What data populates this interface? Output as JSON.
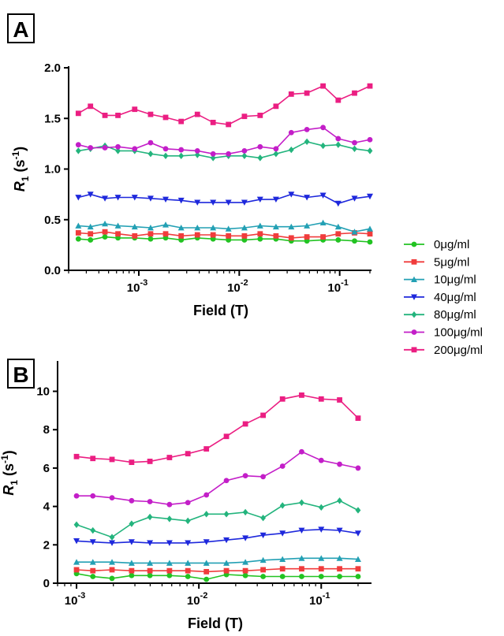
{
  "figure": {
    "panel_labels": [
      "A",
      "B"
    ],
    "legend": [
      {
        "label": "0μg/ml",
        "color": "#22c322",
        "marker": "circle"
      },
      {
        "label": "5μg/ml",
        "color": "#f03c3c",
        "marker": "square"
      },
      {
        "label": "10μg/ml",
        "color": "#23a0b4",
        "marker": "triangle-up"
      },
      {
        "label": "40μg/ml",
        "color": "#1e28dc",
        "marker": "triangle-down"
      },
      {
        "label": "80μg/ml",
        "color": "#23b47d",
        "marker": "diamond"
      },
      {
        "label": "100μg/ml",
        "color": "#c31ec8",
        "marker": "circle"
      },
      {
        "label": "200μg/ml",
        "color": "#eb1e82",
        "marker": "square"
      }
    ]
  },
  "chart_data": [
    {
      "type": "line",
      "panel": "A",
      "xlabel": "Field (T)",
      "ylabel": "R1 (s-1)",
      "xscale": "log",
      "xlim": [
        0.0002,
        0.2
      ],
      "ylim": [
        0,
        2.0
      ],
      "yticks": [
        "0.0",
        "0.5",
        "1.0",
        "1.5",
        "2.0"
      ],
      "xticks": [
        0.001,
        0.01,
        0.1
      ],
      "x": [
        0.00025,
        0.00033,
        0.00046,
        0.00062,
        0.00091,
        0.00131,
        0.00185,
        0.00264,
        0.00383,
        0.00549,
        0.00781,
        0.01126,
        0.01614,
        0.02321,
        0.03296,
        0.04717,
        0.06831,
        0.09669,
        0.14057,
        0.2
      ],
      "series": [
        {
          "name": "0μg/ml",
          "values": [
            0.31,
            0.3,
            0.33,
            0.32,
            0.32,
            0.31,
            0.32,
            0.3,
            0.32,
            0.31,
            0.3,
            0.3,
            0.31,
            0.31,
            0.29,
            0.29,
            0.3,
            0.3,
            0.29,
            0.28
          ]
        },
        {
          "name": "5μg/ml",
          "values": [
            0.37,
            0.36,
            0.38,
            0.36,
            0.34,
            0.36,
            0.36,
            0.34,
            0.35,
            0.35,
            0.34,
            0.34,
            0.36,
            0.34,
            0.32,
            0.33,
            0.33,
            0.36,
            0.37,
            0.36
          ]
        },
        {
          "name": "10μg/ml",
          "values": [
            0.44,
            0.43,
            0.46,
            0.44,
            0.43,
            0.42,
            0.45,
            0.42,
            0.42,
            0.42,
            0.41,
            0.42,
            0.44,
            0.43,
            0.43,
            0.44,
            0.47,
            0.43,
            0.38,
            0.41
          ]
        },
        {
          "name": "40μg/ml",
          "values": [
            0.72,
            0.75,
            0.71,
            0.72,
            0.72,
            0.71,
            0.7,
            0.69,
            0.67,
            0.67,
            0.67,
            0.67,
            0.7,
            0.7,
            0.75,
            0.72,
            0.74,
            0.66,
            0.71,
            0.73
          ]
        },
        {
          "name": "80μg/ml",
          "values": [
            1.18,
            1.2,
            1.23,
            1.18,
            1.18,
            1.15,
            1.13,
            1.13,
            1.14,
            1.11,
            1.13,
            1.13,
            1.11,
            1.15,
            1.19,
            1.27,
            1.23,
            1.24,
            1.2,
            1.18
          ]
        },
        {
          "name": "100μg/ml",
          "values": [
            1.24,
            1.21,
            1.21,
            1.22,
            1.2,
            1.26,
            1.2,
            1.19,
            1.18,
            1.15,
            1.15,
            1.18,
            1.22,
            1.2,
            1.36,
            1.39,
            1.41,
            1.3,
            1.26,
            1.29
          ]
        },
        {
          "name": "200μg/ml",
          "values": [
            1.55,
            1.62,
            1.53,
            1.53,
            1.59,
            1.54,
            1.51,
            1.47,
            1.54,
            1.46,
            1.44,
            1.52,
            1.53,
            1.62,
            1.74,
            1.75,
            1.82,
            1.68,
            1.75,
            1.82
          ]
        }
      ]
    },
    {
      "type": "line",
      "panel": "B",
      "xlabel": "Field (T)",
      "ylabel": "R1 (s-1)",
      "xscale": "log",
      "xlim": [
        0.0007,
        0.25
      ],
      "ylim": [
        0,
        11.5
      ],
      "yticks": [
        "0",
        "2",
        "4",
        "6",
        "8",
        "10"
      ],
      "xticks": [
        0.001,
        0.01,
        0.1
      ],
      "x": [
        0.001,
        0.00136,
        0.00195,
        0.00282,
        0.00398,
        0.00575,
        0.00813,
        0.01152,
        0.01679,
        0.02399,
        0.0335,
        0.04826,
        0.06919,
        0.1,
        0.1413,
        0.2
      ],
      "series": [
        {
          "name": "0μg/ml",
          "values": [
            0.5,
            0.35,
            0.25,
            0.4,
            0.4,
            0.4,
            0.35,
            0.2,
            0.45,
            0.4,
            0.35,
            0.35,
            0.35,
            0.35,
            0.35,
            0.35
          ]
        },
        {
          "name": "5μg/ml",
          "values": [
            0.7,
            0.65,
            0.7,
            0.65,
            0.65,
            0.65,
            0.65,
            0.6,
            0.65,
            0.65,
            0.7,
            0.75,
            0.75,
            0.75,
            0.75,
            0.75
          ]
        },
        {
          "name": "10μg/ml",
          "values": [
            1.1,
            1.1,
            1.1,
            1.05,
            1.05,
            1.05,
            1.05,
            1.05,
            1.05,
            1.1,
            1.2,
            1.25,
            1.3,
            1.3,
            1.3,
            1.25
          ]
        },
        {
          "name": "40μg/ml",
          "values": [
            2.2,
            2.15,
            2.1,
            2.15,
            2.1,
            2.1,
            2.1,
            2.15,
            2.25,
            2.35,
            2.5,
            2.6,
            2.75,
            2.8,
            2.75,
            2.6
          ]
        },
        {
          "name": "80μg/ml",
          "values": [
            3.05,
            2.75,
            2.4,
            3.1,
            3.45,
            3.35,
            3.25,
            3.6,
            3.6,
            3.7,
            3.4,
            4.05,
            4.2,
            3.95,
            4.3,
            3.8
          ]
        },
        {
          "name": "100μg/ml",
          "values": [
            4.55,
            4.55,
            4.45,
            4.3,
            4.25,
            4.1,
            4.2,
            4.6,
            5.35,
            5.6,
            5.55,
            6.1,
            6.85,
            6.4,
            6.2,
            6.0
          ]
        },
        {
          "name": "200μg/ml",
          "values": [
            6.6,
            6.5,
            6.45,
            6.3,
            6.35,
            6.55,
            6.75,
            7.0,
            7.65,
            8.3,
            8.75,
            9.6,
            9.8,
            9.6,
            9.55,
            8.6
          ]
        }
      ]
    }
  ]
}
